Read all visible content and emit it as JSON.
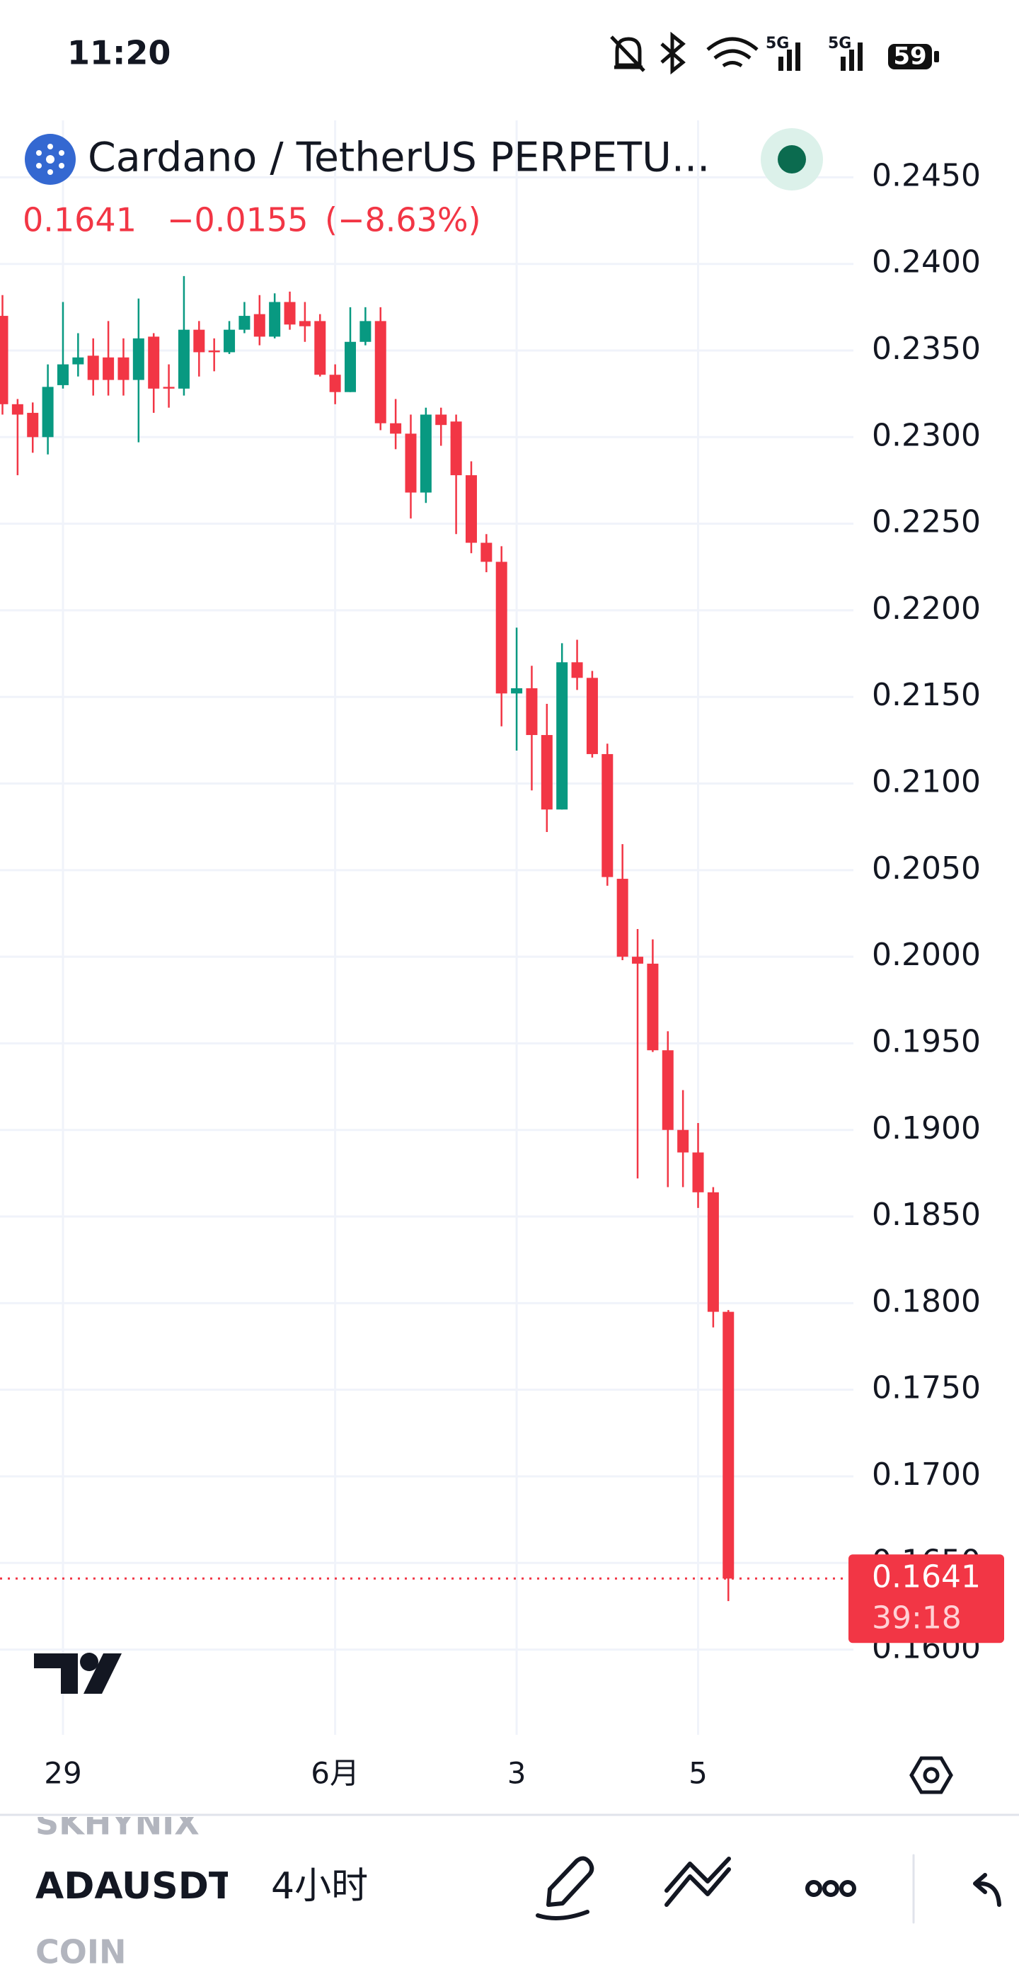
{
  "status_bar": {
    "time": "11:20",
    "network": [
      "5G",
      "5G"
    ],
    "battery": "59"
  },
  "header": {
    "symbol_name": "Cardano / TetherUS PERPETU...",
    "last": 0.1641,
    "change": {
      "value": -0.0155,
      "label": "−0.0155"
    },
    "change_pct": {
      "value": -8.63,
      "label": "(−8.63%)"
    }
  },
  "chart_data": {
    "type": "candlestick",
    "categories": [
      null,
      null,
      null,
      null,
      "29",
      null,
      null,
      null,
      null,
      null,
      null,
      null,
      null,
      null,
      null,
      null,
      null,
      null,
      null,
      null,
      null,
      null,
      "6月",
      null,
      null,
      null,
      null,
      null,
      null,
      null,
      null,
      null,
      null,
      null,
      "3",
      null,
      null,
      null,
      null,
      null,
      null,
      null,
      null,
      null,
      null,
      null,
      "5",
      null,
      null
    ],
    "open": [
      0.237,
      0.2319,
      0.2314,
      0.23,
      0.233,
      0.2342,
      0.2347,
      0.2346,
      0.2346,
      0.2333,
      0.2358,
      0.2329,
      0.2328,
      0.2362,
      0.235,
      0.2349,
      0.2362,
      0.2371,
      0.2358,
      0.2378,
      0.2367,
      0.2367,
      0.2336,
      0.2326,
      0.2355,
      0.2367,
      0.2308,
      0.2302,
      0.2268,
      0.2313,
      0.2309,
      0.2278,
      0.2239,
      0.2228,
      0.2152,
      0.2155,
      0.2128,
      0.2085,
      0.217,
      0.2161,
      0.2117,
      0.2045,
      0.2,
      0.1996,
      0.1946,
      0.19,
      0.1887,
      0.1864,
      0.1795
    ],
    "high": [
      0.2382,
      0.2322,
      0.232,
      0.2342,
      0.2378,
      0.236,
      0.2357,
      0.2367,
      0.2357,
      0.238,
      0.236,
      0.2342,
      0.2393,
      0.2367,
      0.2357,
      0.2367,
      0.2378,
      0.2382,
      0.2383,
      0.2384,
      0.2378,
      0.2371,
      0.2342,
      0.2375,
      0.2375,
      0.2375,
      0.2322,
      0.2313,
      0.2317,
      0.2317,
      0.2313,
      0.2286,
      0.2244,
      0.2237,
      0.219,
      0.2168,
      0.2146,
      0.2181,
      0.2183,
      0.2165,
      0.2123,
      0.2065,
      0.2016,
      0.201,
      0.1957,
      0.1923,
      0.1904,
      0.1867,
      0.1796
    ],
    "low": [
      0.2313,
      0.2278,
      0.2291,
      0.229,
      0.2328,
      0.2335,
      0.2324,
      0.2324,
      0.2324,
      0.2297,
      0.2314,
      0.2317,
      0.2324,
      0.2335,
      0.2338,
      0.2348,
      0.236,
      0.2353,
      0.2357,
      0.2362,
      0.2355,
      0.2335,
      0.2319,
      0.2326,
      0.2353,
      0.2304,
      0.2293,
      0.2253,
      0.2262,
      0.2295,
      0.2244,
      0.2233,
      0.2222,
      0.2133,
      0.2119,
      0.2096,
      0.2072,
      0.2085,
      0.2154,
      0.2115,
      0.2041,
      0.1998,
      0.1872,
      0.1945,
      0.1867,
      0.1867,
      0.1855,
      0.1786,
      0.1628
    ],
    "close": [
      0.2319,
      0.2313,
      0.23,
      0.2329,
      0.2342,
      0.2346,
      0.2333,
      0.2333,
      0.2333,
      0.2357,
      0.2328,
      0.2328,
      0.2362,
      0.2349,
      0.2349,
      0.2362,
      0.237,
      0.2358,
      0.2378,
      0.2365,
      0.2364,
      0.2336,
      0.2326,
      0.2355,
      0.2367,
      0.2308,
      0.2302,
      0.2268,
      0.2313,
      0.2307,
      0.2278,
      0.2239,
      0.2228,
      0.2152,
      0.2155,
      0.2128,
      0.2085,
      0.217,
      0.2161,
      0.2117,
      0.2046,
      0.2,
      0.1996,
      0.1946,
      0.19,
      0.1887,
      0.1864,
      0.1795,
      0.1641
    ],
    "up_color": "#089981",
    "down_color": "#f23645",
    "ylim": [
      0.1552,
      0.248
    ],
    "yticks": [
      {
        "value": 0.16,
        "label": "0.1600"
      },
      {
        "value": 0.165,
        "label": "0.1650"
      },
      {
        "value": 0.17,
        "label": "0.1700"
      },
      {
        "value": 0.175,
        "label": "0.1750"
      },
      {
        "value": 0.18,
        "label": "0.1800"
      },
      {
        "value": 0.185,
        "label": "0.1850"
      },
      {
        "value": 0.19,
        "label": "0.1900"
      },
      {
        "value": 0.195,
        "label": "0.1950"
      },
      {
        "value": 0.2,
        "label": "0.2000"
      },
      {
        "value": 0.205,
        "label": "0.2050"
      },
      {
        "value": 0.21,
        "label": "0.2100"
      },
      {
        "value": 0.215,
        "label": "0.2150"
      },
      {
        "value": 0.22,
        "label": "0.2200"
      },
      {
        "value": 0.225,
        "label": "0.2250"
      },
      {
        "value": 0.23,
        "label": "0.2300"
      },
      {
        "value": 0.235,
        "label": "0.2350"
      },
      {
        "value": 0.24,
        "label": "0.2400"
      },
      {
        "value": 0.245,
        "label": "0.2450"
      }
    ],
    "grid": true,
    "last_price": 0.1641,
    "countdown": "39:18"
  },
  "toolbar": {
    "symbols": [
      "SKHYNIX",
      "ADAUSDT",
      "COIN"
    ],
    "interval": "4小时"
  }
}
